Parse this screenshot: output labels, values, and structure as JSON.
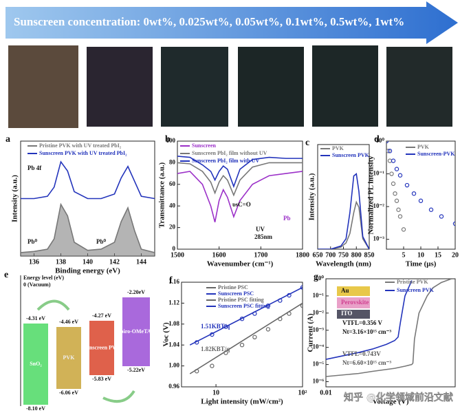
{
  "banner": "Sunscreen concentration: 0wt%, 0.025wt%, 0.05wt%, 0.1wt%, 0.5wt%, 1wt%",
  "energy_diagram": {
    "panel": "e",
    "axis_title": "Energy level (eV)",
    "vacuum": "0 (Vacuum)",
    "materials": [
      {
        "name": "SnO₂",
        "lumo": "-4.31 eV",
        "homo": "-8.10 eV",
        "color": "#4cd964"
      },
      {
        "name": "PVK",
        "lumo": "-4.46 eV",
        "homo": "-6.06 eV",
        "color": "#c9a43a"
      },
      {
        "name": "Sunscreen PVK",
        "lumo": "-4.27 eV",
        "homo": "-5.83 eV",
        "color": "#d9452c"
      },
      {
        "name": "Spiro-OMeTAD",
        "lumo": "-2.20eV",
        "homo": "-5.22eV",
        "color": "#9a4fd6"
      }
    ]
  },
  "watermark": "知乎 @化学领域前沿文献",
  "chart_data": [
    {
      "type": "line",
      "panel": "a",
      "xlabel": "Binding energy (eV)",
      "ylabel": "Intensity (a.u.)",
      "xlim": [
        135,
        145
      ],
      "xticks": [
        136,
        138,
        140,
        142,
        144
      ],
      "ylim": [
        0,
        10
      ],
      "annotations": [
        "Pb 4f",
        "Pb⁰",
        "Pb⁰"
      ],
      "series": [
        {
          "name": "Pristine PVK with UV treated PbI₂",
          "color": "#777777",
          "fill": true,
          "x": [
            135,
            136,
            137,
            137.5,
            138,
            138.5,
            139,
            140,
            141,
            142,
            142.5,
            143,
            143.5,
            144,
            145
          ],
          "values": [
            0.3,
            0.4,
            0.6,
            1.5,
            4.5,
            3.5,
            1.2,
            0.5,
            0.6,
            1.2,
            3,
            4.2,
            2.2,
            0.6,
            0.3
          ]
        },
        {
          "name": "Sunscreen PVK with UV treated PbI₂",
          "color": "#2233bb",
          "fill": false,
          "x": [
            135,
            136,
            137,
            137.5,
            138,
            138.5,
            139,
            140,
            141,
            142,
            142.5,
            143,
            143.5,
            144,
            145
          ],
          "values": [
            5,
            5,
            5.2,
            6,
            8.2,
            7.4,
            5.6,
            5,
            5,
            5.4,
            6.8,
            7.8,
            6.5,
            5.2,
            5
          ]
        }
      ]
    },
    {
      "type": "line",
      "panel": "b",
      "xlabel": "Wavenumber (cm⁻¹)",
      "ylabel": "Transmittance (a.u.)",
      "xlim": [
        1500,
        1800
      ],
      "xticks": [
        1500,
        1600,
        1700,
        1800
      ],
      "ylim": [
        0,
        100
      ],
      "yticks": [
        0,
        20,
        40,
        60,
        80,
        100
      ],
      "annotations": [
        "υsC=O",
        "UV",
        "285nm",
        "Pb"
      ],
      "series": [
        {
          "name": "Sunscreen",
          "color": "#9b30c8",
          "x": [
            1500,
            1530,
            1560,
            1580,
            1590,
            1600,
            1610,
            1620,
            1635,
            1650,
            1680,
            1720,
            1760,
            1800
          ],
          "values": [
            70,
            72,
            60,
            40,
            25,
            45,
            55,
            48,
            30,
            45,
            60,
            68,
            70,
            72
          ]
        },
        {
          "name": "Sunscreen PbI₂ film without UV",
          "color": "#777777",
          "x": [
            1500,
            1530,
            1560,
            1580,
            1590,
            1600,
            1610,
            1620,
            1635,
            1650,
            1680,
            1720,
            1760,
            1800
          ],
          "values": [
            80,
            79,
            72,
            62,
            52,
            62,
            68,
            64,
            50,
            64,
            76,
            80,
            80,
            80
          ]
        },
        {
          "name": "Sunscreen PbI₂ film with UV",
          "color": "#2233bb",
          "x": [
            1500,
            1530,
            1560,
            1580,
            1590,
            1600,
            1610,
            1620,
            1635,
            1650,
            1680,
            1720,
            1760,
            1800
          ],
          "values": [
            86,
            85,
            78,
            72,
            64,
            72,
            77,
            74,
            58,
            74,
            83,
            85,
            84,
            84
          ]
        }
      ]
    },
    {
      "type": "line",
      "panel": "c",
      "xlabel": "Wavelength (nm)",
      "ylabel": "Intensity (a.u.)",
      "xlim": [
        650,
        850
      ],
      "xticks": [
        650,
        700,
        750,
        800,
        850
      ],
      "ylim": [
        0,
        100
      ],
      "series": [
        {
          "name": "PVK",
          "color": "#777777",
          "x": [
            650,
            700,
            740,
            760,
            775,
            790,
            800,
            810,
            825,
            850
          ],
          "values": [
            0,
            0,
            2,
            6,
            15,
            35,
            45,
            40,
            10,
            0
          ]
        },
        {
          "name": "Sunscreen PVK",
          "color": "#2233bb",
          "x": [
            650,
            700,
            740,
            760,
            775,
            790,
            800,
            810,
            825,
            850
          ],
          "values": [
            0,
            0,
            3,
            10,
            35,
            70,
            72,
            55,
            12,
            0
          ]
        }
      ]
    },
    {
      "type": "scatter",
      "panel": "d",
      "xlabel": "Time (μs)",
      "ylabel": "Normalized PL intensity",
      "xlim": [
        0,
        20
      ],
      "xticks": [
        5,
        10,
        15,
        20
      ],
      "ylog": true,
      "ylim": [
        0.0005,
        1
      ],
      "yticks": [
        {
          "value": 1,
          "label": "10⁰"
        },
        {
          "value": 0.1,
          "label": "10⁻¹"
        },
        {
          "value": 0.01,
          "label": "10⁻²"
        },
        {
          "value": 0.001,
          "label": "10⁻³"
        }
      ],
      "series": [
        {
          "name": "PVK",
          "color": "#777777",
          "x": [
            0,
            0.5,
            1,
            1.5,
            2,
            2.5,
            3,
            3.5,
            4,
            5
          ],
          "values": [
            1,
            0.5,
            0.25,
            0.1,
            0.05,
            0.025,
            0.015,
            0.008,
            0.005,
            0.002
          ]
        },
        {
          "name": "Sunscreen-PVK",
          "color": "#2233bb",
          "x": [
            0,
            1,
            2,
            3,
            4,
            6,
            8,
            10,
            13,
            16,
            20
          ],
          "values": [
            1,
            0.5,
            0.25,
            0.14,
            0.09,
            0.045,
            0.025,
            0.015,
            0.008,
            0.005,
            0.003
          ]
        }
      ]
    },
    {
      "type": "scatter",
      "panel": "f",
      "xlabel": "Light intensity (mW/cm²)",
      "ylabel": "Voc (V)",
      "xlog": true,
      "xlim": [
        4,
        100
      ],
      "xticks": [
        10,
        {
          "value": 100,
          "label": "10²"
        }
      ],
      "ylim": [
        0.96,
        1.16
      ],
      "yticks": [
        0.96,
        {
          "value": 1,
          "label": "1.00"
        },
        1.04,
        1.08,
        1.12,
        1.16
      ],
      "annotations": [
        "1.51KBT/q",
        "1.82KBT/q"
      ],
      "series": [
        {
          "name": "Pristine PSC",
          "color": "#666666",
          "x": [
            6,
            9,
            13,
            20,
            28,
            40,
            55,
            70,
            100
          ],
          "values": [
            0.99,
            1.0,
            1.025,
            1.04,
            1.055,
            1.07,
            1.09,
            1.1,
            1.115
          ]
        },
        {
          "name": "Sunscreen PSC",
          "color": "#2233bb",
          "x": [
            6,
            9,
            13,
            20,
            28,
            40,
            55,
            70,
            100
          ],
          "values": [
            1.045,
            1.06,
            1.075,
            1.09,
            1.1,
            1.115,
            1.125,
            1.135,
            1.15
          ]
        },
        {
          "name": "Pristine PSC fitting",
          "color": "#666666",
          "line": true,
          "x": [
            5,
            100
          ],
          "values": [
            0.985,
            1.12
          ]
        },
        {
          "name": "Sunscreen PSC fitting",
          "color": "#2233bb",
          "line": true,
          "x": [
            5,
            100
          ],
          "values": [
            1.04,
            1.15
          ]
        }
      ]
    },
    {
      "type": "line",
      "panel": "g",
      "xlabel": "Voltage (V)",
      "ylabel": "Current (A)",
      "xlog": true,
      "xlim": [
        0.01,
        6
      ],
      "xticks": [
        0.01
      ],
      "ylog": true,
      "ylim": [
        5e-07,
        1
      ],
      "yticks": [
        {
          "value": 1,
          "label": "10⁰"
        },
        {
          "value": 0.1,
          "label": "10⁻¹"
        },
        {
          "value": 0.01,
          "label": "10⁻²"
        },
        {
          "value": 0.001,
          "label": "10⁻³"
        },
        {
          "value": 0.0001,
          "label": "10⁻⁴"
        },
        {
          "value": 1e-05,
          "label": "10⁻⁵"
        },
        {
          "value": 1e-06,
          "label": "10⁻⁶"
        }
      ],
      "annotations": [
        "Au",
        "Perovskite",
        "ITO",
        "VTFL=0.356 V",
        "Nt=3.16×10¹⁵ cm⁻³",
        "VTFL=0.743V",
        "Nt=6.60×10¹⁵ cm⁻³"
      ],
      "series": [
        {
          "name": "Pristine PVK",
          "color": "#777777",
          "x": [
            0.01,
            0.05,
            0.1,
            0.3,
            0.5,
            0.7,
            0.74,
            0.8,
            1,
            1.5,
            2,
            3,
            5
          ],
          "values": [
            2e-06,
            3e-06,
            4e-06,
            6e-06,
            8e-06,
            1e-05,
            1.2e-05,
            0.0003,
            0.01,
            0.1,
            0.3,
            0.6,
            1
          ]
        },
        {
          "name": "Sunscreen PVK",
          "color": "#2233bb",
          "x": [
            0.01,
            0.05,
            0.1,
            0.2,
            0.3,
            0.356,
            0.4,
            0.5,
            0.7
          ],
          "values": [
            2e-05,
            5e-05,
            8e-05,
            0.00015,
            0.00025,
            0.0004,
            0.003,
            0.1,
            0.8
          ]
        }
      ]
    }
  ]
}
